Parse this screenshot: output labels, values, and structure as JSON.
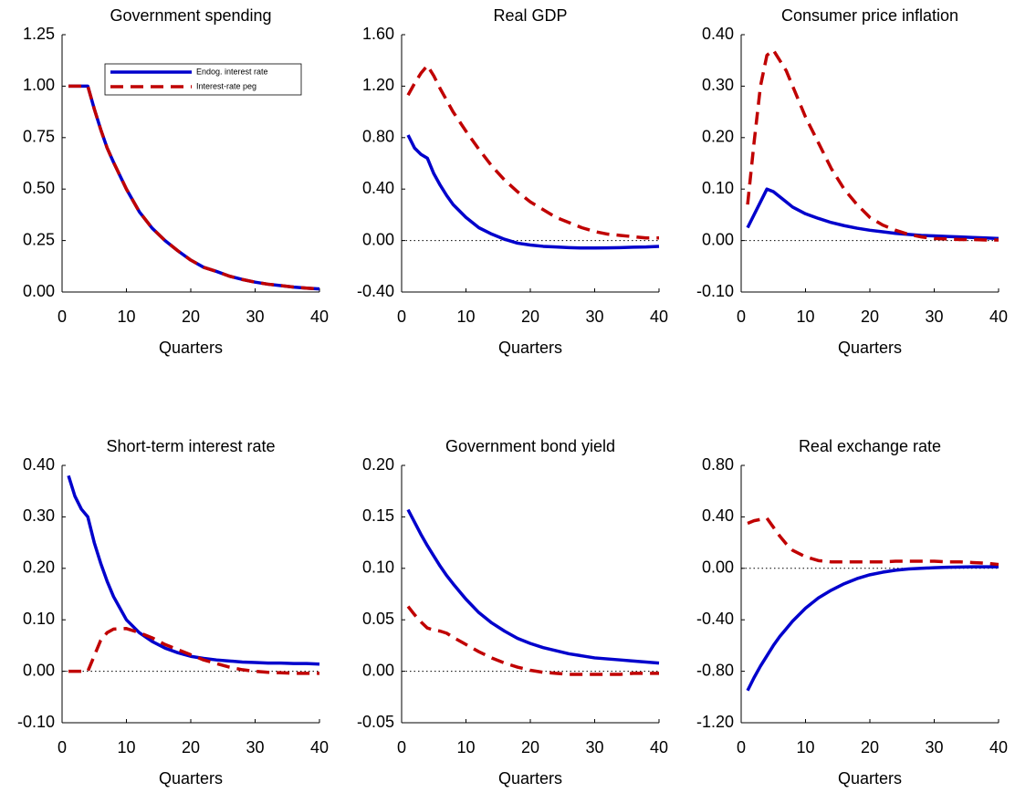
{
  "chart_data": [
    {
      "type": "line",
      "title": "Government spending",
      "xlabel": "Quarters",
      "x": [
        1,
        2,
        3,
        4,
        5,
        6,
        7,
        8,
        10,
        12,
        14,
        16,
        18,
        20,
        22,
        24,
        26,
        28,
        30,
        32,
        34,
        36,
        38,
        40
      ],
      "xlim": [
        0,
        40
      ],
      "xticks": [
        0,
        10,
        20,
        30,
        40
      ],
      "ylim": [
        0,
        1.25
      ],
      "yticks": [
        {
          "value": 0,
          "label": "0.00"
        },
        {
          "value": 0.25,
          "label": "0.25"
        },
        {
          "value": 0.5,
          "label": "0.50"
        },
        {
          "value": 0.75,
          "label": "0.75"
        },
        {
          "value": 1,
          "label": "1.00"
        },
        {
          "value": 1.25,
          "label": "1.25"
        }
      ],
      "legend": "upper right",
      "series": [
        {
          "name": "Endog. interest rate",
          "color": "#0000cc",
          "linestyle": "solid",
          "values": [
            1,
            1,
            1,
            1,
            0.89,
            0.79,
            0.7,
            0.63,
            0.5,
            0.39,
            0.31,
            0.25,
            0.2,
            0.155,
            0.12,
            0.1,
            0.077,
            0.061,
            0.048,
            0.038,
            0.031,
            0.024,
            0.019,
            0.015
          ]
        },
        {
          "name": "Interest-rate peg",
          "color": "#c00000",
          "linestyle": "dashed",
          "values": [
            1,
            1,
            1,
            1,
            0.89,
            0.79,
            0.7,
            0.63,
            0.5,
            0.39,
            0.31,
            0.25,
            0.2,
            0.155,
            0.12,
            0.1,
            0.077,
            0.061,
            0.048,
            0.038,
            0.031,
            0.024,
            0.019,
            0.015
          ]
        }
      ]
    },
    {
      "type": "line",
      "title": "Real GDP",
      "xlabel": "Quarters",
      "x": [
        1,
        2,
        3,
        4,
        5,
        6,
        7,
        8,
        10,
        12,
        14,
        16,
        18,
        20,
        22,
        24,
        26,
        28,
        30,
        32,
        34,
        36,
        38,
        40
      ],
      "xlim": [
        0,
        40
      ],
      "xticks": [
        0,
        10,
        20,
        30,
        40
      ],
      "ylim": [
        -0.4,
        1.6
      ],
      "yticks": [
        {
          "value": -0.4,
          "label": "-0.40"
        },
        {
          "value": 0,
          "label": "0.00"
        },
        {
          "value": 0.4,
          "label": "0.40"
        },
        {
          "value": 0.8,
          "label": "0.80"
        },
        {
          "value": 1.2,
          "label": "1.20"
        },
        {
          "value": 1.6,
          "label": "1.60"
        }
      ],
      "series": [
        {
          "color": "#0000cc",
          "linestyle": "solid",
          "values": [
            0.82,
            0.72,
            0.67,
            0.64,
            0.52,
            0.43,
            0.35,
            0.28,
            0.18,
            0.1,
            0.05,
            0.01,
            -0.02,
            -0.035,
            -0.045,
            -0.05,
            -0.055,
            -0.058,
            -0.058,
            -0.057,
            -0.055,
            -0.052,
            -0.05,
            -0.045
          ]
        },
        {
          "color": "#c00000",
          "linestyle": "dashed",
          "values": [
            1.13,
            1.22,
            1.3,
            1.36,
            1.28,
            1.18,
            1.09,
            1.0,
            0.85,
            0.71,
            0.58,
            0.47,
            0.38,
            0.3,
            0.24,
            0.18,
            0.14,
            0.1,
            0.07,
            0.05,
            0.04,
            0.03,
            0.02,
            0.02
          ]
        }
      ]
    },
    {
      "type": "line",
      "title": "Consumer price inflation",
      "xlabel": "Quarters",
      "x": [
        1,
        2,
        3,
        4,
        5,
        6,
        7,
        8,
        10,
        12,
        14,
        16,
        18,
        20,
        22,
        24,
        26,
        28,
        30,
        32,
        34,
        36,
        38,
        40
      ],
      "xlim": [
        0,
        40
      ],
      "xticks": [
        0,
        10,
        20,
        30,
        40
      ],
      "ylim": [
        -0.1,
        0.4
      ],
      "yticks": [
        {
          "value": -0.1,
          "label": "-0.10"
        },
        {
          "value": 0,
          "label": "0.00"
        },
        {
          "value": 0.1,
          "label": "0.10"
        },
        {
          "value": 0.2,
          "label": "0.20"
        },
        {
          "value": 0.3,
          "label": "0.30"
        },
        {
          "value": 0.4,
          "label": "0.40"
        }
      ],
      "series": [
        {
          "color": "#0000cc",
          "linestyle": "solid",
          "values": [
            0.025,
            0.05,
            0.075,
            0.1,
            0.095,
            0.085,
            0.075,
            0.065,
            0.052,
            0.043,
            0.035,
            0.029,
            0.024,
            0.02,
            0.017,
            0.014,
            0.012,
            0.01,
            0.009,
            0.008,
            0.007,
            0.006,
            0.005,
            0.004
          ]
        },
        {
          "color": "#c00000",
          "linestyle": "dashed",
          "values": [
            0.07,
            0.19,
            0.3,
            0.36,
            0.37,
            0.35,
            0.33,
            0.3,
            0.24,
            0.19,
            0.14,
            0.1,
            0.07,
            0.045,
            0.03,
            0.02,
            0.012,
            0.007,
            0.004,
            0.003,
            0.002,
            0.002,
            0.001,
            0.001
          ]
        }
      ]
    },
    {
      "type": "line",
      "title": "Short-term interest rate",
      "xlabel": "Quarters",
      "x": [
        1,
        2,
        3,
        4,
        5,
        6,
        7,
        8,
        10,
        12,
        14,
        16,
        18,
        20,
        22,
        24,
        26,
        28,
        30,
        32,
        34,
        36,
        38,
        40
      ],
      "xlim": [
        0,
        40
      ],
      "xticks": [
        0,
        10,
        20,
        30,
        40
      ],
      "ylim": [
        -0.1,
        0.4
      ],
      "yticks": [
        {
          "value": -0.1,
          "label": "-0.10"
        },
        {
          "value": 0,
          "label": "0.00"
        },
        {
          "value": 0.1,
          "label": "0.10"
        },
        {
          "value": 0.2,
          "label": "0.20"
        },
        {
          "value": 0.3,
          "label": "0.30"
        },
        {
          "value": 0.4,
          "label": "0.40"
        }
      ],
      "series": [
        {
          "color": "#0000cc",
          "linestyle": "solid",
          "values": [
            0.38,
            0.34,
            0.315,
            0.3,
            0.25,
            0.21,
            0.175,
            0.145,
            0.1,
            0.075,
            0.058,
            0.045,
            0.036,
            0.029,
            0.025,
            0.022,
            0.02,
            0.018,
            0.017,
            0.016,
            0.016,
            0.015,
            0.015,
            0.014
          ]
        },
        {
          "color": "#c00000",
          "linestyle": "dashed",
          "values": [
            0,
            0,
            0,
            0,
            0.03,
            0.06,
            0.075,
            0.082,
            0.083,
            0.075,
            0.065,
            0.052,
            0.042,
            0.032,
            0.022,
            0.015,
            0.008,
            0.003,
            0,
            -0.002,
            -0.003,
            -0.004,
            -0.004,
            -0.004
          ]
        }
      ]
    },
    {
      "type": "line",
      "title": "Government bond yield",
      "xlabel": "Quarters",
      "x": [
        1,
        2,
        3,
        4,
        5,
        6,
        7,
        8,
        10,
        12,
        14,
        16,
        18,
        20,
        22,
        24,
        26,
        28,
        30,
        32,
        34,
        36,
        38,
        40
      ],
      "xlim": [
        0,
        40
      ],
      "xticks": [
        0,
        10,
        20,
        30,
        40
      ],
      "ylim": [
        -0.05,
        0.2
      ],
      "yticks": [
        {
          "value": -0.05,
          "label": "-0.05"
        },
        {
          "value": 0,
          "label": "0.00"
        },
        {
          "value": 0.05,
          "label": "0.05"
        },
        {
          "value": 0.1,
          "label": "0.10"
        },
        {
          "value": 0.15,
          "label": "0.15"
        },
        {
          "value": 0.2,
          "label": "0.20"
        }
      ],
      "series": [
        {
          "color": "#0000cc",
          "linestyle": "solid",
          "values": [
            0.157,
            0.145,
            0.133,
            0.122,
            0.112,
            0.102,
            0.093,
            0.085,
            0.07,
            0.057,
            0.047,
            0.039,
            0.032,
            0.027,
            0.023,
            0.02,
            0.017,
            0.015,
            0.013,
            0.012,
            0.011,
            0.01,
            0.009,
            0.008
          ]
        },
        {
          "color": "#c00000",
          "linestyle": "dashed",
          "values": [
            0.063,
            0.055,
            0.048,
            0.042,
            0.04,
            0.039,
            0.037,
            0.033,
            0.026,
            0.019,
            0.013,
            0.008,
            0.004,
            0.001,
            -0.001,
            -0.002,
            -0.003,
            -0.003,
            -0.003,
            -0.003,
            -0.003,
            -0.002,
            -0.002,
            -0.002
          ]
        }
      ]
    },
    {
      "type": "line",
      "title": "Real exchange rate",
      "xlabel": "Quarters",
      "x": [
        1,
        2,
        3,
        4,
        5,
        6,
        7,
        8,
        10,
        12,
        14,
        16,
        18,
        20,
        22,
        24,
        26,
        28,
        30,
        32,
        34,
        36,
        38,
        40
      ],
      "xlim": [
        0,
        40
      ],
      "xticks": [
        0,
        10,
        20,
        30,
        40
      ],
      "ylim": [
        -1.2,
        0.8
      ],
      "yticks": [
        {
          "value": -1.2,
          "label": "-1.20"
        },
        {
          "value": -0.8,
          "label": "-0.80"
        },
        {
          "value": -0.4,
          "label": "-0.40"
        },
        {
          "value": 0,
          "label": "0.00"
        },
        {
          "value": 0.4,
          "label": "0.40"
        },
        {
          "value": 0.8,
          "label": "0.80"
        }
      ],
      "series": [
        {
          "color": "#0000cc",
          "linestyle": "solid",
          "values": [
            -0.95,
            -0.85,
            -0.76,
            -0.68,
            -0.6,
            -0.53,
            -0.47,
            -0.41,
            -0.31,
            -0.23,
            -0.17,
            -0.12,
            -0.08,
            -0.05,
            -0.03,
            -0.015,
            -0.005,
            0,
            0.005,
            0.008,
            0.01,
            0.012,
            0.012,
            0.012
          ]
        },
        {
          "color": "#c00000",
          "linestyle": "dashed",
          "values": [
            0.35,
            0.37,
            0.38,
            0.39,
            0.32,
            0.25,
            0.19,
            0.14,
            0.09,
            0.06,
            0.05,
            0.05,
            0.05,
            0.05,
            0.05,
            0.055,
            0.055,
            0.055,
            0.055,
            0.05,
            0.05,
            0.045,
            0.04,
            0.03
          ]
        }
      ]
    }
  ]
}
